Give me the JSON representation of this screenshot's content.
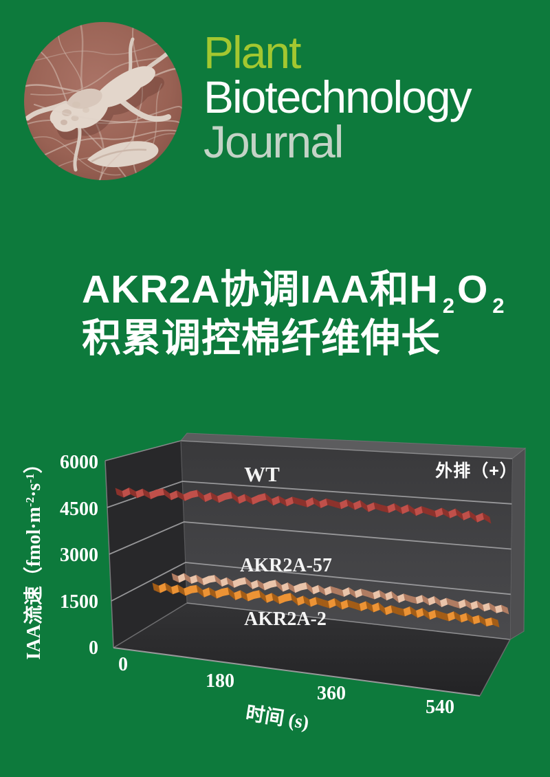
{
  "page": {
    "background_color": "#0d7a3c"
  },
  "journal": {
    "name_line1": "Plant",
    "name_line2": "Biotechnology",
    "name_line3": "Journal",
    "plant_color": "#a3c730",
    "biotech_color": "#fbfdfc",
    "journal_color": "#c3d3c6"
  },
  "cover_title": {
    "line1_prefix": "AKR2A协调IAA和H",
    "line1_sub1": "2",
    "line1_mid": "O",
    "line1_sub2": "2",
    "line2": "积累调控棉纤维伸长",
    "color": "#ffffff"
  },
  "chart_data": {
    "type": "line",
    "style": "3d-ribbon-waterfall",
    "annotation": "外排（+）",
    "xlabel": "时间 (s)",
    "ylabel": {
      "pre": "IAA流速（fmol·m",
      "sup1": "-2",
      "mid": "·s",
      "sup2": "-1",
      "post": "）"
    },
    "x_ticks": [
      "0",
      "180",
      "360",
      "540"
    ],
    "x_tick_values": [
      0,
      180,
      360,
      540
    ],
    "y_ticks": [
      "6000",
      "4500",
      "3000",
      "1500",
      "0"
    ],
    "ylim": [
      0,
      6000
    ],
    "xlim": [
      0,
      560
    ],
    "grid": "horizontal-wall-lines",
    "legend_position": "inline-labels",
    "series": [
      {
        "name": "WT",
        "color_light": "#c0504a",
        "color_dark": "#8c322c",
        "trend": "slow decline ~5150 to ~4400 fmol·m-2·s-1",
        "values": [
          5150,
          5060,
          5170,
          5050,
          5140,
          5020,
          5120,
          5160,
          5000,
          5100,
          4980,
          5080,
          5130,
          4960,
          5060,
          4940,
          5040,
          5090,
          4920,
          5020,
          4900,
          5000,
          5060,
          4880,
          4980,
          4860,
          4960,
          4900,
          4840,
          4950,
          4820,
          4920,
          4860,
          4800,
          4900,
          4780,
          4880,
          4720,
          4820,
          4750,
          4700,
          4800,
          4670,
          4770,
          4620,
          4720,
          4650,
          4580,
          4680,
          4560,
          4660,
          4500,
          4600,
          4440,
          4540,
          4410
        ]
      },
      {
        "name": "AKR2A-57",
        "color_light": "#eac4aa",
        "color_dark": "#b07c62",
        "trend": "slow decline ~2430 to ~1780 fmol·m-2·s-1",
        "values": [
          2430,
          2350,
          2450,
          2330,
          2410,
          2300,
          2390,
          2430,
          2280,
          2370,
          2260,
          2350,
          2400,
          2240,
          2330,
          2220,
          2310,
          2360,
          2200,
          2290,
          2180,
          2270,
          2320,
          2160,
          2250,
          2140,
          2230,
          2180,
          2120,
          2220,
          2100,
          2190,
          2140,
          2080,
          2170,
          2060,
          2150,
          2000,
          2090,
          2030,
          1990,
          2070,
          1960,
          2050,
          1920,
          2010,
          1950,
          1900,
          1990,
          1880,
          1960,
          1840,
          1910,
          1800,
          1860,
          1780
        ]
      },
      {
        "name": "AKR2A-2",
        "color_light": "#ec9335",
        "color_dark": "#a35d17",
        "trend": "slow decline ~2240 to ~1580 fmol·m-2·s-1",
        "values": [
          2240,
          2160,
          2260,
          2140,
          2220,
          2110,
          2200,
          2240,
          2090,
          2180,
          2070,
          2160,
          2210,
          2050,
          2140,
          2030,
          2120,
          2170,
          2010,
          2100,
          1990,
          2080,
          2130,
          1970,
          2060,
          1950,
          2040,
          1980,
          1930,
          2030,
          1910,
          2000,
          1950,
          1890,
          1980,
          1870,
          1960,
          1800,
          1890,
          1830,
          1790,
          1880,
          1760,
          1850,
          1720,
          1810,
          1750,
          1700,
          1790,
          1680,
          1760,
          1640,
          1710,
          1590,
          1650,
          1580
        ]
      }
    ]
  }
}
